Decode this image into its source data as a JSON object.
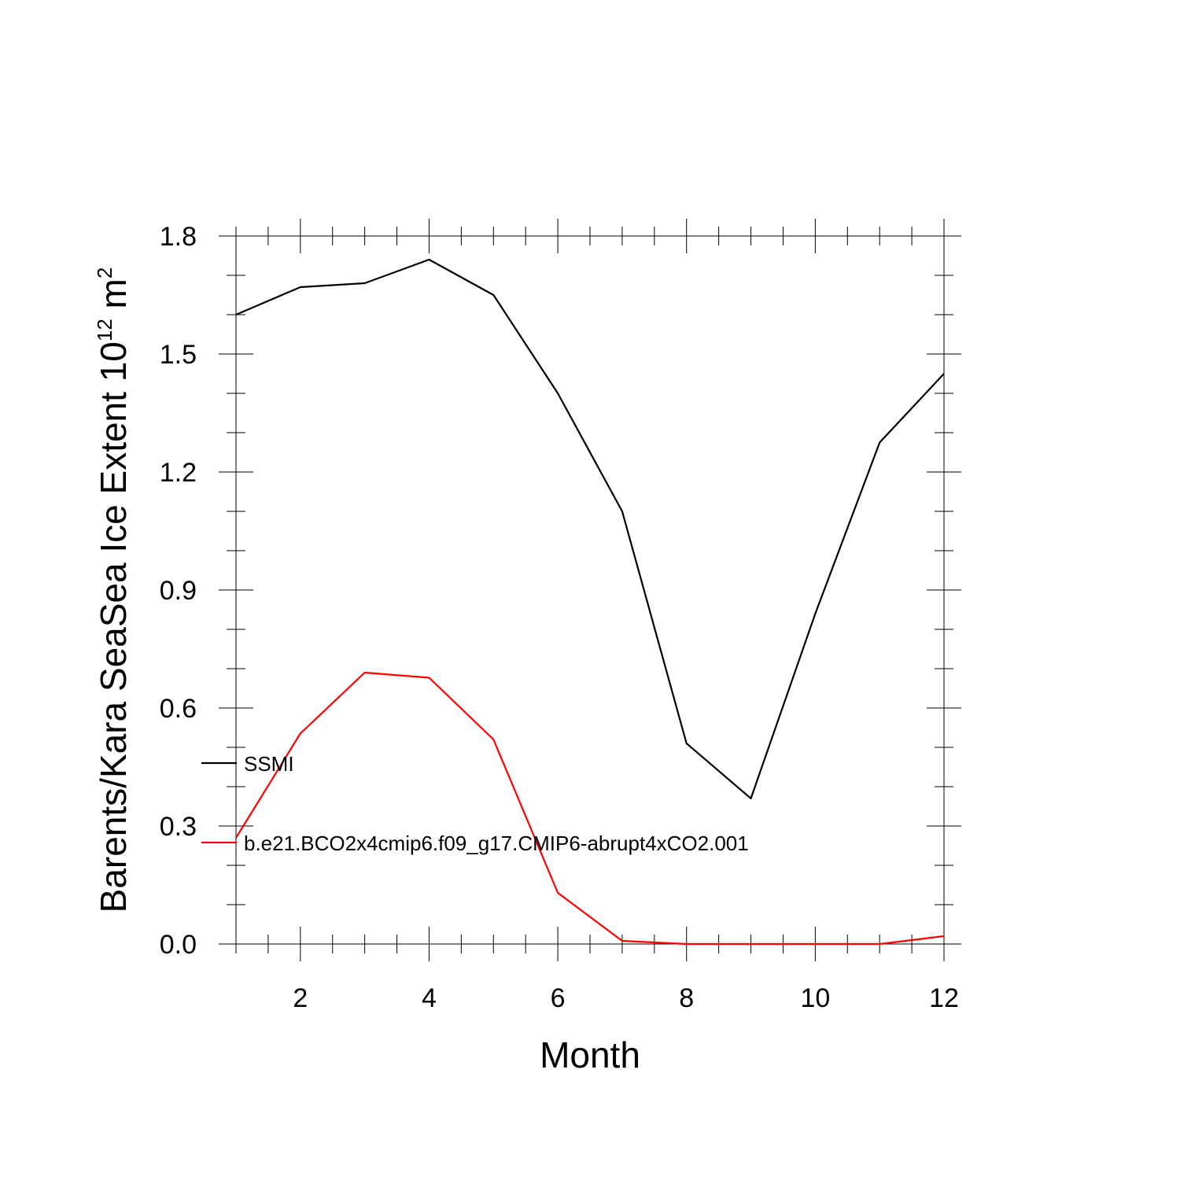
{
  "chart_data": {
    "type": "line",
    "title": "",
    "xlabel": "Month",
    "ylabel": {
      "main": "Barents/Kara SeaSea Ice Extent 10",
      "exponent": "12",
      "unit": " m",
      "unit_exponent": "2"
    },
    "xlim": [
      1,
      12
    ],
    "ylim": [
      0,
      1.8
    ],
    "x_ticks": [
      2,
      4,
      6,
      8,
      10,
      12
    ],
    "x_tick_labels": [
      "2",
      "4",
      "6",
      "8",
      "10",
      "12"
    ],
    "y_ticks": [
      0,
      0.3,
      0.6,
      0.9,
      1.2,
      1.5,
      1.8
    ],
    "y_tick_labels": [
      "0.0",
      "0.3",
      "0.6",
      "0.9",
      "1.2",
      "1.5",
      "1.8"
    ],
    "grid": false,
    "legend_placement": "lower-left, inside plot",
    "x": [
      1,
      2,
      3,
      4,
      5,
      6,
      7,
      8,
      9,
      10,
      11,
      12
    ],
    "series": [
      {
        "name": "SSMI",
        "color": "#000000",
        "values": [
          1.6,
          1.67,
          1.68,
          1.74,
          1.65,
          1.4,
          1.1,
          0.51,
          0.37,
          0.84,
          1.275,
          1.45
        ]
      },
      {
        "name": "b.e21.BCO2x4cmip6.f09_g17.CMIP6-abrupt4xCO2.001",
        "color": "#ff0000",
        "values": [
          0.27,
          0.535,
          0.69,
          0.677,
          0.52,
          0.13,
          0.008,
          0.0,
          0.0,
          0.0,
          0.0,
          0.02
        ]
      }
    ]
  }
}
